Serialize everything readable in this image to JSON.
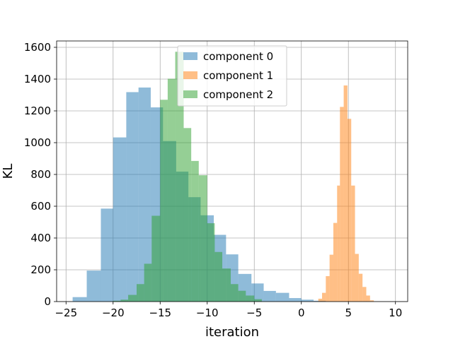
{
  "chart_data": {
    "type": "bar",
    "title": "",
    "xlabel": "iteration",
    "ylabel": "KL",
    "xlim": [
      -26,
      11.3
    ],
    "ylim": [
      0,
      1640
    ],
    "xticks": [
      -25,
      -20,
      -15,
      -10,
      -5,
      0,
      5,
      10
    ],
    "yticks": [
      0,
      200,
      400,
      600,
      800,
      1000,
      1200,
      1400,
      1600
    ],
    "grid": true,
    "legend": "upper center",
    "alpha": 0.5,
    "series": [
      {
        "name": "component 0",
        "color": "#1f77b4",
        "bins": [
          {
            "x0": -24.3,
            "x1": -22.8,
            "v": 28
          },
          {
            "x0": -22.8,
            "x1": -21.3,
            "v": 195
          },
          {
            "x0": -21.3,
            "x1": -20.0,
            "v": 585
          },
          {
            "x0": -20.0,
            "x1": -18.6,
            "v": 1033
          },
          {
            "x0": -18.6,
            "x1": -17.3,
            "v": 1318
          },
          {
            "x0": -17.3,
            "x1": -16.0,
            "v": 1347
          },
          {
            "x0": -16.0,
            "x1": -14.7,
            "v": 1222
          },
          {
            "x0": -14.7,
            "x1": -13.3,
            "v": 1010
          },
          {
            "x0": -13.3,
            "x1": -12.0,
            "v": 818
          },
          {
            "x0": -12.0,
            "x1": -10.7,
            "v": 657
          },
          {
            "x0": -10.7,
            "x1": -9.3,
            "v": 543
          },
          {
            "x0": -9.3,
            "x1": -8.0,
            "v": 420
          },
          {
            "x0": -8.0,
            "x1": -6.7,
            "v": 297
          },
          {
            "x0": -6.7,
            "x1": -5.3,
            "v": 174
          },
          {
            "x0": -5.3,
            "x1": -4.0,
            "v": 114
          },
          {
            "x0": -4.0,
            "x1": -2.7,
            "v": 67
          },
          {
            "x0": -2.7,
            "x1": -1.3,
            "v": 55
          },
          {
            "x0": -1.3,
            "x1": 0.0,
            "v": 22
          },
          {
            "x0": 0.0,
            "x1": 1.3,
            "v": 12
          },
          {
            "x0": 1.3,
            "x1": 2.6,
            "v": 5
          }
        ]
      },
      {
        "name": "component 1",
        "color": "#ff7f0e",
        "bins": [
          {
            "x0": 1.8,
            "x1": 2.2,
            "v": 18
          },
          {
            "x0": 2.2,
            "x1": 2.6,
            "v": 55
          },
          {
            "x0": 2.6,
            "x1": 3.0,
            "v": 160
          },
          {
            "x0": 3.0,
            "x1": 3.4,
            "v": 295
          },
          {
            "x0": 3.4,
            "x1": 3.8,
            "v": 495
          },
          {
            "x0": 3.8,
            "x1": 4.1,
            "v": 730
          },
          {
            "x0": 4.1,
            "x1": 4.5,
            "v": 1225
          },
          {
            "x0": 4.5,
            "x1": 4.9,
            "v": 1360
          },
          {
            "x0": 4.9,
            "x1": 5.3,
            "v": 1150
          },
          {
            "x0": 5.3,
            "x1": 5.7,
            "v": 730
          },
          {
            "x0": 5.7,
            "x1": 6.1,
            "v": 300
          },
          {
            "x0": 6.1,
            "x1": 6.5,
            "v": 175
          },
          {
            "x0": 6.5,
            "x1": 6.9,
            "v": 92
          },
          {
            "x0": 6.9,
            "x1": 7.3,
            "v": 38
          },
          {
            "x0": 7.3,
            "x1": 7.7,
            "v": 8
          }
        ]
      },
      {
        "name": "component 2",
        "color": "#2ca02c",
        "bins": [
          {
            "x0": -20.0,
            "x1": -19.2,
            "v": 5
          },
          {
            "x0": -19.2,
            "x1": -18.4,
            "v": 12
          },
          {
            "x0": -18.4,
            "x1": -17.5,
            "v": 42
          },
          {
            "x0": -17.5,
            "x1": -16.7,
            "v": 110
          },
          {
            "x0": -16.7,
            "x1": -15.9,
            "v": 238
          },
          {
            "x0": -15.9,
            "x1": -15.0,
            "v": 540
          },
          {
            "x0": -15.0,
            "x1": -14.2,
            "v": 1270
          },
          {
            "x0": -14.2,
            "x1": -13.4,
            "v": 1402
          },
          {
            "x0": -13.4,
            "x1": -12.5,
            "v": 1572
          },
          {
            "x0": -12.5,
            "x1": -11.7,
            "v": 1092
          },
          {
            "x0": -11.7,
            "x1": -10.9,
            "v": 885
          },
          {
            "x0": -10.9,
            "x1": -10.0,
            "v": 795
          },
          {
            "x0": -10.0,
            "x1": -9.2,
            "v": 493
          },
          {
            "x0": -9.2,
            "x1": -8.4,
            "v": 312
          },
          {
            "x0": -8.4,
            "x1": -7.5,
            "v": 208
          },
          {
            "x0": -7.5,
            "x1": -6.7,
            "v": 110
          },
          {
            "x0": -6.7,
            "x1": -5.9,
            "v": 68
          },
          {
            "x0": -5.9,
            "x1": -5.0,
            "v": 38
          },
          {
            "x0": -5.0,
            "x1": -4.2,
            "v": 15
          }
        ]
      }
    ]
  }
}
